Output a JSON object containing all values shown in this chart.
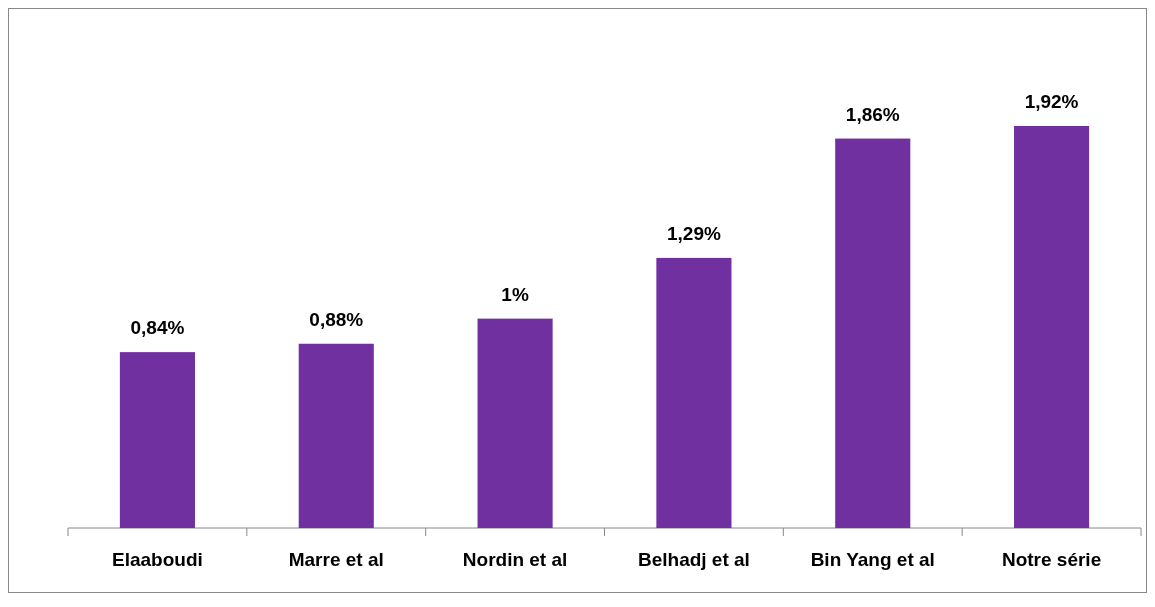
{
  "chart_data": {
    "type": "bar",
    "categories": [
      "Elaaboudi",
      "Marre et al",
      "Nordin et al",
      "Belhadj et al",
      "Bin Yang et al",
      "Notre série"
    ],
    "values": [
      0.84,
      0.88,
      1,
      1.29,
      1.86,
      1.92
    ],
    "value_labels": [
      "0,84%",
      "0,88%",
      "1%",
      "1,29%",
      "1,86%",
      "1,92%"
    ],
    "color": "#7030a0"
  }
}
